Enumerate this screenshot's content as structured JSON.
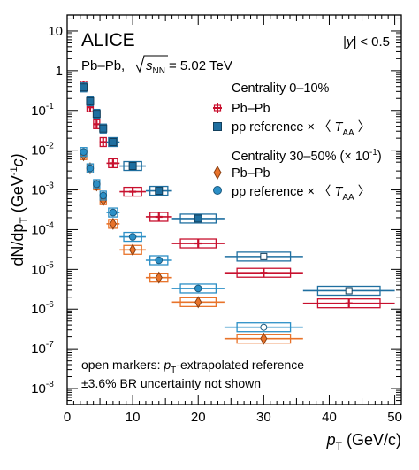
{
  "chart_data": {
    "type": "scatter",
    "experiment_label": "ALICE",
    "system_label": "Pb–Pb,",
    "energy_label": "= 5.02 TeV",
    "energy_symbol": "s",
    "energy_subscript": "NN",
    "rapidity_label": "< 0.5",
    "rapidity_symbol": "|y|",
    "xlabel": "(GeV/c)",
    "xlabel_symbol": "p",
    "xlabel_subscript": "T",
    "ylabel_prefix": "dN/dp",
    "ylabel_subscript": "T",
    "ylabel_unit": "(GeV",
    "ylabel_unit_exp": "-1",
    "ylabel_unit_suffix": "c)",
    "xlim": [
      0,
      51
    ],
    "ylim_log10": [
      -8.4,
      1.4
    ],
    "x_ticks": [
      0,
      10,
      20,
      30,
      40,
      50
    ],
    "y_ticks": [
      {
        "exp": 1,
        "label": "10"
      },
      {
        "exp": 0,
        "label": "1"
      },
      {
        "exp": -1,
        "label": "10"
      },
      {
        "exp": -2,
        "label": "10"
      },
      {
        "exp": -3,
        "label": "10"
      },
      {
        "exp": -4,
        "label": "10"
      },
      {
        "exp": -5,
        "label": "10"
      },
      {
        "exp": -6,
        "label": "10"
      },
      {
        "exp": -7,
        "label": "10"
      },
      {
        "exp": -8,
        "label": "10"
      }
    ],
    "y_tick_exponents": [
      "",
      "",
      "-1",
      "-2",
      "-3",
      "-4",
      "-5",
      "-6",
      "-7",
      "-8"
    ],
    "legend": {
      "group1_title": "Centrality 0–10%",
      "group1_entries": [
        "Pb–Pb",
        "pp reference × 〈"
      ],
      "group2_title": "Centrality 30–50% (× 10",
      "group2_title_exp": "-1",
      "group2_title_end": ")",
      "group2_entries": [
        "Pb–Pb",
        "pp reference × 〈"
      ],
      "taa_symbol": "T",
      "taa_subscript": "AA",
      "taa_close": "〉"
    },
    "notes": {
      "line1_prefix": "open markers: ",
      "line1_symbol": "p",
      "line1_subscript": "T",
      "line1_suffix": "-extrapolated reference",
      "line2": "±3.6% BR uncertainty not shown"
    },
    "colors": {
      "central_pbpb": "#c8102e",
      "central_pp": "#1f6fa0",
      "semi_pbpb": "#e8732a",
      "semi_pp": "#2b8fc6"
    },
    "series": [
      {
        "name": "Centrality 0–10% Pb–Pb",
        "marker": "cross",
        "color_key": "central_pbpb",
        "points": [
          {
            "x": 2.5,
            "y": 0.42,
            "xlo": 2,
            "xhi": 3
          },
          {
            "x": 3.5,
            "y": 0.12,
            "xlo": 3,
            "xhi": 4
          },
          {
            "x": 4.5,
            "y": 0.045,
            "xlo": 4,
            "xhi": 5
          },
          {
            "x": 5.5,
            "y": 0.016,
            "xlo": 5,
            "xhi": 6
          },
          {
            "x": 7.0,
            "y": 0.0047,
            "xlo": 6,
            "xhi": 8
          },
          {
            "x": 10.0,
            "y": 0.0009,
            "xlo": 8,
            "xhi": 12
          },
          {
            "x": 14.0,
            "y": 0.00021,
            "xlo": 12,
            "xhi": 16
          },
          {
            "x": 20.0,
            "y": 4.5e-05,
            "xlo": 16,
            "xhi": 24
          },
          {
            "x": 30.0,
            "y": 8.2e-06,
            "xlo": 24,
            "xhi": 36
          },
          {
            "x": 43.0,
            "y": 1.4e-06,
            "xlo": 36,
            "xhi": 50
          }
        ]
      },
      {
        "name": "Centrality 0–10% pp reference",
        "marker": "square",
        "color_key": "central_pp",
        "points": [
          {
            "x": 2.5,
            "y": 0.38,
            "xlo": 2,
            "xhi": 3
          },
          {
            "x": 3.5,
            "y": 0.17,
            "xlo": 3,
            "xhi": 4
          },
          {
            "x": 4.5,
            "y": 0.082,
            "xlo": 4,
            "xhi": 5
          },
          {
            "x": 5.5,
            "y": 0.035,
            "xlo": 5,
            "xhi": 6
          },
          {
            "x": 7.0,
            "y": 0.016,
            "xlo": 6,
            "xhi": 8
          },
          {
            "x": 10.0,
            "y": 0.004,
            "xlo": 8,
            "xhi": 12
          },
          {
            "x": 14.0,
            "y": 0.00095,
            "xlo": 12,
            "xhi": 16
          },
          {
            "x": 20.0,
            "y": 0.00019,
            "xlo": 16,
            "xhi": 24
          },
          {
            "x": 30.0,
            "y": 2.1e-05,
            "xlo": 24,
            "xhi": 36,
            "open": true
          },
          {
            "x": 43.0,
            "y": 2.9e-06,
            "xlo": 36,
            "xhi": 50,
            "open": true
          }
        ]
      },
      {
        "name": "Centrality 30–50% Pb–Pb",
        "marker": "diamond",
        "color_key": "semi_pbpb",
        "points": [
          {
            "x": 2.5,
            "y": 0.0075,
            "xlo": 2,
            "xhi": 3
          },
          {
            "x": 3.5,
            "y": 0.0035,
            "xlo": 3,
            "xhi": 4
          },
          {
            "x": 4.5,
            "y": 0.0013,
            "xlo": 4,
            "xhi": 5
          },
          {
            "x": 5.5,
            "y": 0.00055,
            "xlo": 5,
            "xhi": 6
          },
          {
            "x": 7.0,
            "y": 0.00014,
            "xlo": 6,
            "xhi": 8
          },
          {
            "x": 10.0,
            "y": 3.1e-05,
            "xlo": 8,
            "xhi": 12
          },
          {
            "x": 14.0,
            "y": 6.2e-06,
            "xlo": 12,
            "xhi": 16
          },
          {
            "x": 20.0,
            "y": 1.5e-06,
            "xlo": 16,
            "xhi": 24
          },
          {
            "x": 30.0,
            "y": 1.8e-07,
            "xlo": 24,
            "xhi": 36
          }
        ]
      },
      {
        "name": "Centrality 30–50% pp reference",
        "marker": "circle",
        "color_key": "semi_pp",
        "points": [
          {
            "x": 2.5,
            "y": 0.009,
            "xlo": 2,
            "xhi": 3
          },
          {
            "x": 3.5,
            "y": 0.0035,
            "xlo": 3,
            "xhi": 4
          },
          {
            "x": 4.5,
            "y": 0.0014,
            "xlo": 4,
            "xhi": 5
          },
          {
            "x": 5.5,
            "y": 0.00072,
            "xlo": 5,
            "xhi": 6
          },
          {
            "x": 7.0,
            "y": 0.00027,
            "xlo": 6,
            "xhi": 8
          },
          {
            "x": 10.0,
            "y": 6.6e-05,
            "xlo": 8,
            "xhi": 12
          },
          {
            "x": 14.0,
            "y": 1.7e-05,
            "xlo": 12,
            "xhi": 16
          },
          {
            "x": 20.0,
            "y": 3.3e-06,
            "xlo": 16,
            "xhi": 24
          },
          {
            "x": 30.0,
            "y": 3.5e-07,
            "xlo": 24,
            "xhi": 36,
            "open": true
          }
        ]
      }
    ]
  }
}
